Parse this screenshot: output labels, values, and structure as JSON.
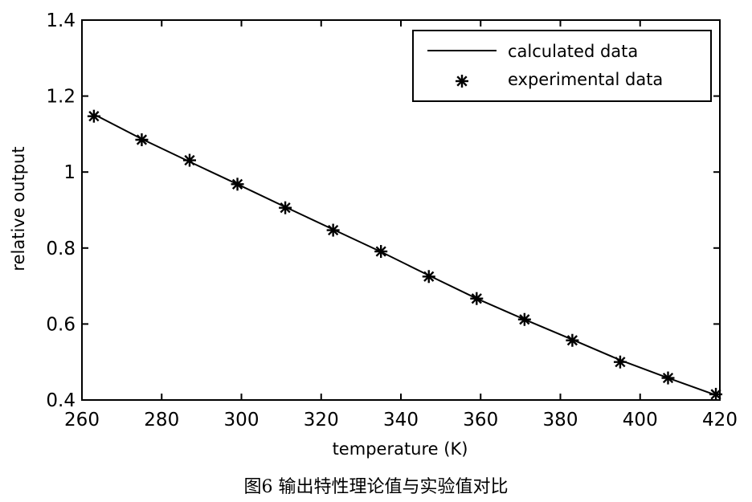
{
  "caption": "图6 输出特性理论值与实验值对比",
  "chart_data": {
    "type": "line",
    "xlabel": "temperature (K)",
    "ylabel": "relative output",
    "xlim": [
      260,
      420
    ],
    "ylim": [
      0.4,
      1.4
    ],
    "xticks": [
      260,
      280,
      300,
      320,
      340,
      360,
      380,
      400,
      420
    ],
    "yticks": [
      0.4,
      0.6,
      0.8,
      1,
      1.2,
      1.4
    ],
    "xtick_labels": [
      "260",
      "280",
      "300",
      "320",
      "340",
      "360",
      "380",
      "400",
      "420"
    ],
    "ytick_labels": [
      "0.4",
      "0.6",
      "0.8",
      "1",
      "1.2",
      "1.4"
    ],
    "grid": false,
    "legend_position": "top-right",
    "series": [
      {
        "name": "calculated data",
        "style": "solid-line",
        "color": "#000000",
        "x": [
          263,
          275,
          287,
          299,
          311,
          323,
          335,
          347,
          359,
          371,
          383,
          395,
          407,
          419
        ],
        "y": [
          1.152,
          1.087,
          1.027,
          0.968,
          0.908,
          0.849,
          0.79,
          0.728,
          0.667,
          0.612,
          0.559,
          0.505,
          0.458,
          0.413
        ]
      },
      {
        "name": "experimental data",
        "style": "asterisk-markers",
        "color": "#000000",
        "x": [
          263,
          275,
          287,
          299,
          311,
          323,
          335,
          347,
          359,
          371,
          383,
          395,
          407,
          419
        ],
        "y": [
          1.147,
          1.085,
          1.031,
          0.968,
          0.906,
          0.847,
          0.791,
          0.725,
          0.667,
          0.612,
          0.557,
          0.5,
          0.458,
          0.415
        ]
      }
    ]
  }
}
